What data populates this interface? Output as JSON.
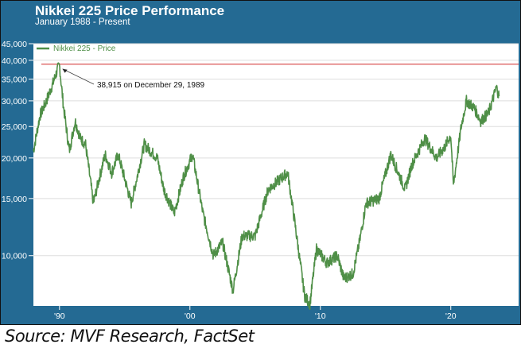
{
  "header": {
    "title": "Nikkei 225 Price Performance",
    "subtitle": "January 1988 - Present"
  },
  "source": "Source: MVF Research, FactSet",
  "colors": {
    "frame": "#246a93",
    "line": "#4f8f47",
    "reference": "#e07070",
    "grid": "#dddddd"
  },
  "chart_data": {
    "type": "line",
    "title": "Nikkei 225 Price Performance",
    "subtitle": "January 1988 - Present",
    "yscale": "log",
    "ylim": [
      7000,
      45000
    ],
    "xlim": [
      1988,
      2025.2
    ],
    "yticks": [
      {
        "v": 10000,
        "label": "10,000"
      },
      {
        "v": 15000,
        "label": "15,000"
      },
      {
        "v": 20000,
        "label": "20,000"
      },
      {
        "v": 25000,
        "label": "25,000"
      },
      {
        "v": 30000,
        "label": "30,000"
      },
      {
        "v": 35000,
        "label": "35,000"
      },
      {
        "v": 40000,
        "label": "40,000"
      },
      {
        "v": 45000,
        "label": "45,000"
      }
    ],
    "xticks": [
      {
        "v": 1990,
        "label": "'90"
      },
      {
        "v": 2000,
        "label": "'00"
      },
      {
        "v": 2010,
        "label": "'10"
      },
      {
        "v": 2020,
        "label": "'20"
      }
    ],
    "legend": {
      "label": "Nikkei 225 - Price",
      "placement": "top-left"
    },
    "reference_line": {
      "value": 38915
    },
    "annotation": {
      "text": "38,915 on December 29, 1989",
      "x": 1989.99,
      "y": 38915
    },
    "series": [
      {
        "name": "Nikkei 225 - Price",
        "x": [
          1988.0,
          1988.5,
          1989.0,
          1989.5,
          1989.99,
          1990.3,
          1990.75,
          1991.2,
          1991.6,
          1992.0,
          1992.6,
          1993.0,
          1993.5,
          1994.0,
          1994.5,
          1995.5,
          1996.5,
          1997.5,
          1998.0,
          1998.8,
          1999.5,
          2000.2,
          2001.0,
          2001.8,
          2002.5,
          2003.3,
          2004.0,
          2005.0,
          2006.0,
          2007.5,
          2008.0,
          2008.8,
          2009.2,
          2009.7,
          2010.5,
          2011.3,
          2011.8,
          2012.5,
          2013.0,
          2013.5,
          2014.5,
          2015.4,
          2016.5,
          2017.0,
          2018.0,
          2018.9,
          2019.5,
          2020.0,
          2020.2,
          2020.8,
          2021.2,
          2021.8,
          2022.3,
          2022.9,
          2023.5,
          2023.7
        ],
        "y": [
          21000,
          27000,
          30000,
          34000,
          38915,
          29000,
          21000,
          26000,
          23000,
          22000,
          14500,
          17000,
          20500,
          18000,
          20500,
          14500,
          22000,
          20000,
          16000,
          13500,
          17500,
          20500,
          13500,
          10000,
          11000,
          7800,
          11500,
          11500,
          16000,
          18000,
          13000,
          7500,
          7100,
          10500,
          9500,
          10000,
          8500,
          8800,
          11000,
          14500,
          15000,
          20500,
          16000,
          19000,
          23000,
          20000,
          21500,
          23500,
          16500,
          25000,
          30000,
          28500,
          26000,
          27500,
          33000,
          31000
        ]
      }
    ]
  }
}
